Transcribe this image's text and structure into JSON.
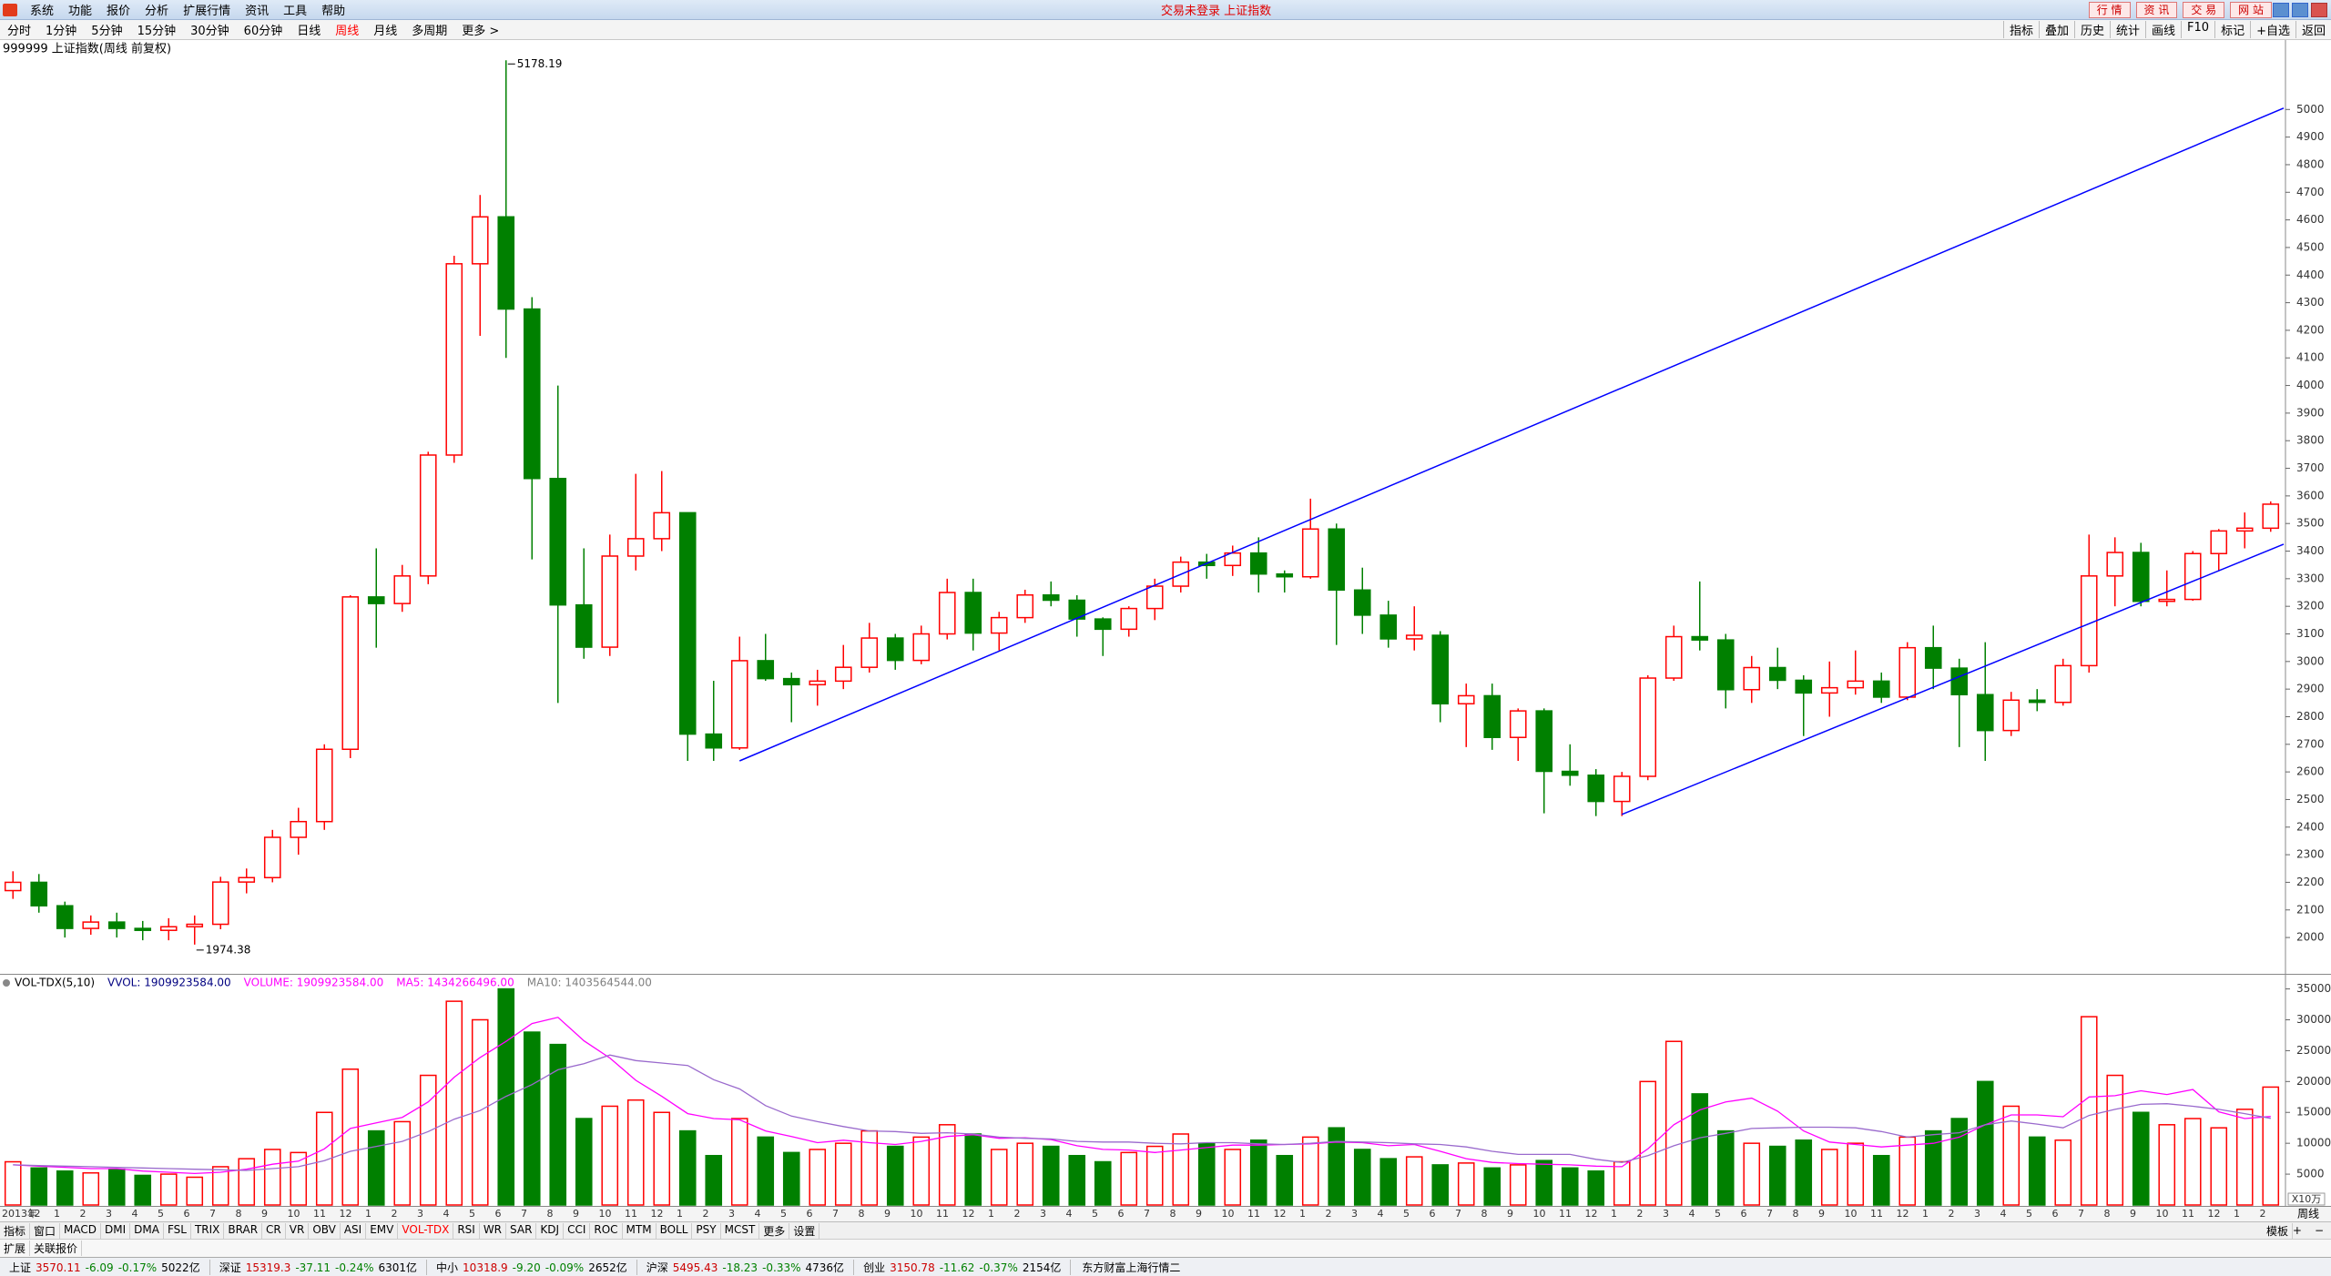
{
  "window": {
    "menu": [
      "系统",
      "功能",
      "报价",
      "分析",
      "扩展行情",
      "资讯",
      "工具",
      "帮助"
    ],
    "status_title": "交易未登录 上证指数",
    "site_buttons": [
      "行 情",
      "资 讯",
      "交 易",
      "网 站"
    ]
  },
  "periods": {
    "items": [
      "分时",
      "1分钟",
      "5分钟",
      "15分钟",
      "30分钟",
      "60分钟",
      "日线",
      "周线",
      "月线",
      "多周期",
      "更多 >"
    ],
    "active": 7
  },
  "tools": [
    "指标",
    "叠加",
    "历史",
    "统计",
    "画线",
    "F10",
    "标记",
    "+自选",
    "返回"
  ],
  "chart_data": [
    {
      "type": "candlestick",
      "title": "999999 上证指数(周线 前复权)",
      "xlabel": "周线",
      "categories": [
        "2013年",
        "12",
        "1",
        "2",
        "3",
        "4",
        "5",
        "6",
        "7",
        "8",
        "9",
        "10",
        "11",
        "12",
        "1",
        "2",
        "3",
        "4",
        "5",
        "6",
        "7",
        "8",
        "9",
        "10",
        "11",
        "12",
        "1",
        "2",
        "3",
        "4",
        "5",
        "6",
        "7",
        "8",
        "9",
        "10",
        "11",
        "12",
        "1",
        "2",
        "3",
        "4",
        "5",
        "6",
        "7",
        "8",
        "9",
        "10",
        "11",
        "12",
        "1",
        "2",
        "3",
        "4",
        "5",
        "6",
        "7",
        "8",
        "9",
        "10",
        "11",
        "12",
        "1",
        "2",
        "3",
        "4",
        "5",
        "6",
        "7",
        "8",
        "9",
        "10",
        "11",
        "12",
        "1",
        "2",
        "3",
        "4",
        "5",
        "6",
        "7",
        "8",
        "9",
        "10",
        "11",
        "12",
        "1",
        "2"
      ],
      "open": [
        2170,
        2200,
        2115,
        2033,
        2056,
        2033,
        2026,
        2039,
        2048,
        2201,
        2217,
        2363,
        2420,
        2682,
        3234,
        3210,
        3310,
        3748,
        4441,
        4611,
        4277,
        3663,
        3205,
        3052,
        3382,
        3445,
        3539,
        2737,
        2687,
        3003,
        2938,
        2916,
        2929,
        2979,
        3085,
        3004,
        3100,
        3250,
        3103,
        3159,
        3241,
        3222,
        3154,
        3117,
        3192,
        3273,
        3360,
        3348,
        3393,
        3317,
        3307,
        3480,
        3259,
        3168,
        3082,
        3095,
        2847,
        2876,
        2725,
        2821,
        2602,
        2588,
        2493,
        2584,
        2940,
        3090,
        3078,
        2898,
        2978,
        2932,
        2886,
        2905,
        2929,
        2871,
        3050,
        2976,
        2880,
        2750,
        2860,
        2852,
        2985,
        3310,
        3395,
        3218,
        3225,
        3391,
        3473,
        3483
      ],
      "high": [
        2240,
        2230,
        2130,
        2080,
        2090,
        2060,
        2070,
        2080,
        2220,
        2250,
        2390,
        2470,
        2700,
        3240,
        3410,
        3350,
        3760,
        4470,
        4690,
        5178.19,
        4320,
        4000,
        3410,
        3460,
        3680,
        3690,
        3540,
        2930,
        3090,
        3100,
        2960,
        2970,
        3060,
        3140,
        3100,
        3130,
        3300,
        3300,
        3180,
        3260,
        3290,
        3240,
        3160,
        3200,
        3300,
        3380,
        3390,
        3420,
        3450,
        3330,
        3590,
        3500,
        3340,
        3220,
        3200,
        3110,
        2920,
        2920,
        2830,
        2830,
        2700,
        2610,
        2600,
        2950,
        3130,
        3290,
        3100,
        3020,
        3050,
        2950,
        3000,
        3040,
        2960,
        3070,
        3130,
        3010,
        3070,
        2890,
        2900,
        3010,
        3460,
        3450,
        3430,
        3330,
        3400,
        3480,
        3540,
        3580
      ],
      "low": [
        2140,
        2090,
        2000,
        2010,
        2000,
        1990,
        1990,
        1974.38,
        2030,
        2160,
        2200,
        2300,
        2390,
        2650,
        3050,
        3180,
        3280,
        3720,
        4180,
        4100,
        3370,
        2850,
        3010,
        3020,
        3330,
        3400,
        2640,
        2640,
        2680,
        2930,
        2780,
        2840,
        2900,
        2960,
        2970,
        2990,
        3080,
        3040,
        3040,
        3140,
        3200,
        3090,
        3020,
        3090,
        3150,
        3250,
        3300,
        3310,
        3250,
        3250,
        3300,
        3060,
        3100,
        3050,
        3040,
        2780,
        2690,
        2680,
        2640,
        2450,
        2550,
        2440,
        2440,
        2570,
        2930,
        3040,
        2830,
        2850,
        2900,
        2730,
        2800,
        2880,
        2850,
        2860,
        2900,
        2690,
        2640,
        2730,
        2820,
        2840,
        2960,
        3200,
        3200,
        3200,
        3220,
        3330,
        3410,
        3470
      ],
      "close": [
        2200,
        2115,
        2033,
        2056,
        2033,
        2026,
        2039,
        2048,
        2201,
        2217,
        2363,
        2420,
        2682,
        3234,
        3210,
        3310,
        3748,
        4441,
        4611,
        4277,
        3663,
        3205,
        3052,
        3382,
        3445,
        3539,
        2737,
        2687,
        3003,
        2938,
        2916,
        2929,
        2979,
        3085,
        3004,
        3100,
        3250,
        3103,
        3159,
        3241,
        3222,
        3154,
        3117,
        3192,
        3273,
        3360,
        3348,
        3393,
        3317,
        3307,
        3480,
        3259,
        3168,
        3082,
        3095,
        2847,
        2876,
        2725,
        2821,
        2602,
        2588,
        2493,
        2584,
        2940,
        3090,
        3078,
        2898,
        2978,
        2932,
        2886,
        2905,
        2929,
        2871,
        3050,
        2976,
        2880,
        2750,
        2860,
        2852,
        2985,
        3310,
        3395,
        3218,
        3225,
        3391,
        3473,
        3483,
        3570
      ],
      "up_color": "#ff0000",
      "down_color": "#008000",
      "trend_lines": [
        {
          "color": "#0000ff",
          "points": [
            [
              28,
              2640
            ],
            [
              87.5,
              5005
            ]
          ]
        },
        {
          "color": "#0000ff",
          "points": [
            [
              62,
              2446
            ],
            [
              87.5,
              3425
            ]
          ]
        }
      ],
      "ylim": [
        1875,
        5245
      ],
      "yticks": [
        2000,
        2100,
        2200,
        2300,
        2400,
        2500,
        2600,
        2700,
        2800,
        2900,
        3000,
        3100,
        3200,
        3300,
        3400,
        3500,
        3600,
        3700,
        3800,
        3900,
        4000,
        4100,
        4200,
        4300,
        4400,
        4500,
        4600,
        4700,
        4800,
        4900,
        5000
      ]
    },
    {
      "type": "volume",
      "unit_label": "X10万",
      "legend": [
        {
          "text": "VOL-TDX(5,10)",
          "color": "#000000"
        },
        {
          "text": "VVOL: 1909923584.00",
          "color": "#000080"
        },
        {
          "text": "VOLUME: 1909923584.00",
          "color": "#ff00ff"
        },
        {
          "text": "MA5: 1434266496.00",
          "color": "#ff00ff"
        },
        {
          "text": "MA10: 1403564544.00",
          "color": "#808080"
        }
      ],
      "values": [
        7000,
        6000,
        5500,
        5200,
        5800,
        4800,
        5000,
        4500,
        6200,
        7500,
        9000,
        8500,
        15000,
        22000,
        12000,
        13500,
        21000,
        33000,
        30000,
        35000,
        28000,
        26000,
        14000,
        16000,
        17000,
        15000,
        12000,
        8000,
        14000,
        11000,
        8500,
        9000,
        10000,
        12000,
        9500,
        11000,
        13000,
        11500,
        9000,
        10000,
        9500,
        8000,
        7000,
        8500,
        9500,
        11500,
        10000,
        9000,
        10500,
        8000,
        11000,
        12500,
        9000,
        7500,
        7800,
        6500,
        6800,
        6000,
        6500,
        7200,
        6000,
        5500,
        7000,
        20000,
        26500,
        18000,
        12000,
        10000,
        9500,
        10500,
        9000,
        10000,
        8000,
        11000,
        12000,
        14000,
        20000,
        16000,
        11000,
        10500,
        30500,
        21000,
        15000,
        13000,
        14000,
        12500,
        15500,
        19099.23584
      ],
      "series": [
        {
          "color": "#ff00ff",
          "values": [
            6500,
            6300,
            6100,
            5900,
            5900,
            5500,
            5300,
            5100,
            5300,
            5800,
            6600,
            7100,
            9100,
            12400,
            13300,
            14200,
            16700,
            20700,
            23900,
            26500,
            29400,
            30400,
            26600,
            23800,
            20200,
            17600,
            14800,
            14000,
            13800,
            12000,
            11100,
            10100,
            10500,
            10100,
            9800,
            10300,
            11100,
            11400,
            10800,
            10900,
            10600,
            9600,
            9000,
            8900,
            8500,
            8900,
            9300,
            9700,
            9700,
            9800,
            9900,
            10200,
            10100,
            9600,
            9800,
            8700,
            7500,
            6900,
            6700,
            6600,
            6500,
            6300,
            6200,
            9100,
            13000,
            15400,
            16700,
            17300,
            15200,
            12000,
            10200,
            9800,
            9400,
            9700,
            10000,
            11000,
            13000,
            14600,
            14600,
            14300,
            17500,
            17700,
            18500,
            17900,
            18700,
            15100,
            14000,
            14342.66
          ]
        },
        {
          "color": "#9a6acd",
          "values": [
            6500,
            6400,
            6300,
            6200,
            6100,
            6000,
            5900,
            5800,
            5700,
            5600,
            5900,
            6200,
            7200,
            8700,
            9500,
            10300,
            11900,
            13900,
            15300,
            17600,
            19500,
            21900,
            22900,
            24300,
            23400,
            23000,
            22600,
            20300,
            18800,
            16100,
            14400,
            13500,
            12700,
            12000,
            11900,
            11600,
            11700,
            11500,
            11000,
            10800,
            10700,
            10300,
            10200,
            10200,
            10000,
            9900,
            10100,
            10100,
            9900,
            9800,
            10000,
            10300,
            10200,
            10100,
            9900,
            9800,
            9400,
            8700,
            8200,
            8200,
            8200,
            7400,
            6900,
            8000,
            9600,
            10900,
            11600,
            12400,
            12500,
            12600,
            12600,
            12500,
            11900,
            11000,
            11400,
            11700,
            13000,
            13600,
            13100,
            12500,
            14500,
            15500,
            16300,
            16400,
            16000,
            15500,
            14800,
            14035.65
          ]
        }
      ],
      "up_color": "#ff0000",
      "down_color": "#008000",
      "ylim": [
        0,
        37000
      ],
      "yticks": [
        5000,
        10000,
        15000,
        20000,
        25000,
        30000,
        35000
      ]
    }
  ],
  "indicator_tabs": {
    "items": [
      "指标",
      "窗口",
      "MACD",
      "DMI",
      "DMA",
      "FSL",
      "TRIX",
      "BRAR",
      "CR",
      "VR",
      "OBV",
      "ASI",
      "EMV",
      "VOL-TDX",
      "RSI",
      "WR",
      "SAR",
      "KDJ",
      "CCI",
      "ROC",
      "MTM",
      "BOLL",
      "PSY",
      "MCST",
      "更多",
      "设置"
    ],
    "active": 13,
    "right": "模板"
  },
  "ext_row": [
    "扩展",
    "关联报价"
  ],
  "status_bar": {
    "indices": [
      {
        "name": "上证",
        "price": "3570.11",
        "change": "-6.09",
        "pct": "-0.17%",
        "amount": "5022亿"
      },
      {
        "name": "深证",
        "price": "15319.3",
        "change": "-37.11",
        "pct": "-0.24%",
        "amount": "6301亿"
      },
      {
        "name": "中小",
        "price": "10318.9",
        "change": "-9.20",
        "pct": "-0.09%",
        "amount": "2652亿"
      },
      {
        "name": "沪深",
        "price": "5495.43",
        "change": "-18.23",
        "pct": "-0.33%",
        "amount": "4736亿"
      },
      {
        "name": "创业",
        "price": "3150.78",
        "change": "-11.62",
        "pct": "-0.37%",
        "amount": "2154亿"
      }
    ],
    "feed": "东方财富上海行情二"
  }
}
